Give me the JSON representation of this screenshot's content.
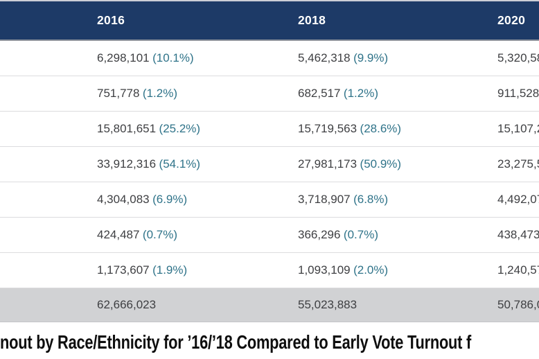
{
  "header": {
    "years": [
      "2016",
      "2018",
      "2020"
    ]
  },
  "rows": [
    {
      "v2016": "6,298,101",
      "p2016": "(10.1%)",
      "v2018": "5,462,318",
      "p2018": "(9.9%)",
      "v2020": "5,320,58"
    },
    {
      "v2016": "751,778",
      "p2016": "(1.2%)",
      "v2018": "682,517",
      "p2018": "(1.2%)",
      "v2020": "911,528"
    },
    {
      "v2016": "15,801,651",
      "p2016": "(25.2%)",
      "v2018": "15,719,563",
      "p2018": "(28.6%)",
      "v2020": "15,107,2"
    },
    {
      "v2016": "33,912,316",
      "p2016": "(54.1%)",
      "v2018": "27,981,173",
      "p2018": "(50.9%)",
      "v2020": "23,275,5"
    },
    {
      "v2016": "4,304,083",
      "p2016": "(6.9%)",
      "v2018": "3,718,907",
      "p2018": "(6.8%)",
      "v2020": "4,492,07"
    },
    {
      "v2016": "424,487",
      "p2016": "(0.7%)",
      "v2018": "366,296",
      "p2018": "(0.7%)",
      "v2020": "438,473"
    },
    {
      "v2016": "1,173,607",
      "p2016": "(1.9%)",
      "v2018": "1,093,109",
      "p2018": "(2.0%)",
      "v2020": "1,240,57"
    }
  ],
  "total": {
    "v2016": "62,666,023",
    "v2018": "55,023,883",
    "v2020": "50,786,0"
  },
  "caption": "nout by Race/Ethnicity for ’16/’18 Compared to Early Vote Turnout f",
  "colors": {
    "header_bg": "#1d3a67",
    "header_text": "#ffffff",
    "percent_text": "#2f7389",
    "number_text": "#3e3f42",
    "total_row_bg": "#d1d2d4",
    "row_border": "#dcdcde"
  }
}
